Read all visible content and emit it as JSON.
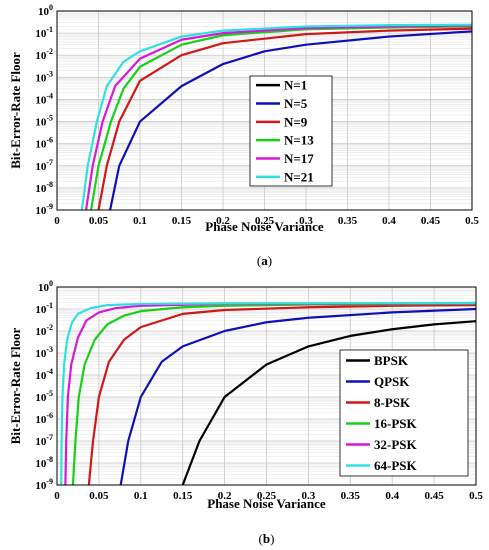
{
  "chart_data": [
    {
      "type": "line",
      "panel_label": "(a)",
      "xlabel": "Phase Noise Variance",
      "ylabel": "Bit-Error-Rate Floor",
      "xlim": [
        0,
        0.5
      ],
      "ylim": [
        1e-09,
        1
      ],
      "y_scale": "log",
      "grid": true,
      "legend_position": "center-right",
      "x_ticks": [
        "0",
        "0.05",
        "0.1",
        "0.15",
        "0.2",
        "0.25",
        "0.3",
        "0.35",
        "0.4",
        "0.45",
        "0.5"
      ],
      "series": [
        {
          "name": "N=1",
          "color": "#000000",
          "x": [
            0.5
          ],
          "y": [
            0.12
          ]
        },
        {
          "name": "N=5",
          "color": "#1010b8",
          "x": [
            0.064,
            0.075,
            0.1,
            0.15,
            0.2,
            0.25,
            0.3,
            0.4,
            0.5
          ],
          "y": [
            1e-09,
            1e-07,
            1e-05,
            0.0004,
            0.004,
            0.015,
            0.03,
            0.07,
            0.12
          ]
        },
        {
          "name": "N=9",
          "color": "#d01818",
          "x": [
            0.05,
            0.06,
            0.075,
            0.1,
            0.15,
            0.2,
            0.3,
            0.4,
            0.5
          ],
          "y": [
            1e-09,
            1e-07,
            1e-05,
            0.0007,
            0.01,
            0.035,
            0.09,
            0.13,
            0.16
          ]
        },
        {
          "name": "N=13",
          "color": "#18d018",
          "x": [
            0.041,
            0.05,
            0.065,
            0.08,
            0.1,
            0.15,
            0.2,
            0.3,
            0.4,
            0.5
          ],
          "y": [
            1e-09,
            1e-07,
            1e-05,
            0.0003,
            0.003,
            0.03,
            0.08,
            0.15,
            0.18,
            0.2
          ]
        },
        {
          "name": "N=17",
          "color": "#d818d8",
          "x": [
            0.035,
            0.043,
            0.055,
            0.07,
            0.1,
            0.15,
            0.2,
            0.3,
            0.4,
            0.5
          ],
          "y": [
            1e-09,
            1e-07,
            1e-05,
            0.0004,
            0.007,
            0.05,
            0.1,
            0.17,
            0.2,
            0.22
          ]
        },
        {
          "name": "N=21",
          "color": "#30e0e0",
          "x": [
            0.03,
            0.037,
            0.048,
            0.06,
            0.08,
            0.1,
            0.15,
            0.2,
            0.3,
            0.4,
            0.5
          ],
          "y": [
            1e-09,
            1e-07,
            1e-05,
            0.0004,
            0.005,
            0.015,
            0.07,
            0.13,
            0.2,
            0.23,
            0.24
          ]
        }
      ]
    },
    {
      "type": "line",
      "panel_label": "(b)",
      "xlabel": "Phase Noise Variance",
      "ylabel": "Bit-Error-Rate Floor",
      "xlim": [
        0,
        0.5
      ],
      "ylim": [
        1e-09,
        1
      ],
      "y_scale": "log",
      "grid": true,
      "legend_position": "lower-right",
      "x_ticks": [
        "0",
        "0.05",
        "0.1",
        "0.15",
        "0.2",
        "0.25",
        "0.3",
        "0.35",
        "0.4",
        "0.45",
        "0.5"
      ],
      "series": [
        {
          "name": "BPSK",
          "color": "#000000",
          "x": [
            0.15,
            0.17,
            0.2,
            0.25,
            0.3,
            0.35,
            0.4,
            0.45,
            0.5
          ],
          "y": [
            1e-09,
            1e-07,
            1e-05,
            0.0003,
            0.002,
            0.006,
            0.012,
            0.02,
            0.028
          ]
        },
        {
          "name": "QPSK",
          "color": "#1010b8",
          "x": [
            0.076,
            0.085,
            0.1,
            0.125,
            0.15,
            0.2,
            0.25,
            0.3,
            0.4,
            0.5
          ],
          "y": [
            1e-09,
            1e-07,
            1e-05,
            0.0004,
            0.002,
            0.01,
            0.025,
            0.04,
            0.07,
            0.1
          ]
        },
        {
          "name": "8-PSK",
          "color": "#d01818",
          "x": [
            0.038,
            0.043,
            0.05,
            0.062,
            0.08,
            0.1,
            0.15,
            0.2,
            0.3,
            0.4,
            0.5
          ],
          "y": [
            1e-09,
            1e-07,
            1e-05,
            0.0004,
            0.004,
            0.015,
            0.06,
            0.09,
            0.12,
            0.14,
            0.15
          ]
        },
        {
          "name": "16-PSK",
          "color": "#18d018",
          "x": [
            0.019,
            0.022,
            0.026,
            0.033,
            0.045,
            0.06,
            0.08,
            0.1,
            0.15,
            0.2,
            0.3,
            0.5
          ],
          "y": [
            1e-09,
            1e-07,
            1e-05,
            0.0003,
            0.004,
            0.02,
            0.05,
            0.08,
            0.12,
            0.14,
            0.16,
            0.17
          ]
        },
        {
          "name": "32-PSK",
          "color": "#d818d8",
          "x": [
            0.01,
            0.011,
            0.013,
            0.017,
            0.025,
            0.035,
            0.05,
            0.07,
            0.1,
            0.2,
            0.5
          ],
          "y": [
            1e-09,
            1e-07,
            1e-05,
            0.0003,
            0.005,
            0.03,
            0.07,
            0.11,
            0.14,
            0.17,
            0.18
          ]
        },
        {
          "name": "64-PSK",
          "color": "#30e0e0",
          "x": [
            0.005,
            0.0055,
            0.0065,
            0.0085,
            0.012,
            0.018,
            0.025,
            0.04,
            0.06,
            0.1,
            0.2,
            0.5
          ],
          "y": [
            1e-09,
            1e-07,
            1e-05,
            0.0003,
            0.004,
            0.025,
            0.06,
            0.11,
            0.15,
            0.17,
            0.18,
            0.19
          ]
        }
      ]
    }
  ]
}
